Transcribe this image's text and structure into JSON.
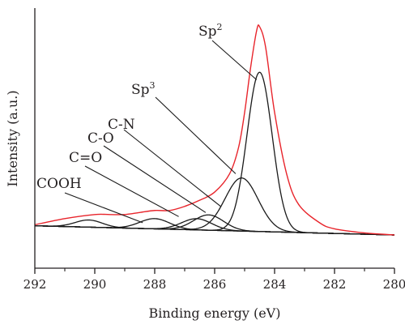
{
  "chart_data": {
    "type": "line",
    "title": "",
    "xlabel": "Binding energy (eV)",
    "ylabel": "Intensity (a.u.)",
    "xlim": [
      292,
      280
    ],
    "x_reversed": true,
    "x_ticks": [
      "292",
      "290",
      "288",
      "286",
      "284",
      "282",
      "280"
    ],
    "y_ticks_shown": false,
    "grid": false,
    "legend": "none",
    "colors": {
      "envelope": "#e8242b",
      "components": "#1a1a1a",
      "axes": "#231f20"
    },
    "baseline": {
      "at_292": 0.045,
      "at_280": 0.0
    },
    "series": [
      {
        "role": "envelope",
        "color": "#e8242b",
        "x": [
          292,
          291.0,
          290.0,
          289.5,
          289.0,
          288.5,
          288.0,
          287.5,
          287.0,
          286.5,
          286.0,
          285.5,
          285.2,
          285.0,
          284.8,
          284.6,
          284.5,
          284.3,
          284.0,
          283.6,
          283.2,
          282.5,
          282.0,
          281.0,
          280.0
        ],
        "y": [
          0.05,
          0.08,
          0.1,
          0.1,
          0.1,
          0.11,
          0.12,
          0.12,
          0.14,
          0.17,
          0.21,
          0.3,
          0.43,
          0.6,
          0.82,
          1.0,
          1.02,
          0.92,
          0.6,
          0.3,
          0.15,
          0.06,
          0.03,
          0.01,
          0.0
        ]
      },
      {
        "role": "component",
        "label": "Sp2",
        "color": "#1a1a1a",
        "center": 284.5,
        "height": 0.78,
        "width": 0.42
      },
      {
        "role": "component",
        "label": "Sp3",
        "color": "#1a1a1a",
        "center": 285.1,
        "height": 0.26,
        "width": 0.55
      },
      {
        "role": "component",
        "label": "C-N",
        "color": "#1a1a1a",
        "center": 286.2,
        "height": 0.075,
        "width": 0.5
      },
      {
        "role": "component",
        "label": "C-O",
        "color": "#1a1a1a",
        "center": 286.6,
        "height": 0.055,
        "width": 0.5
      },
      {
        "role": "component",
        "label": "C=O",
        "color": "#1a1a1a",
        "center": 288.0,
        "height": 0.05,
        "width": 0.5
      },
      {
        "role": "component",
        "label": "COOH",
        "color": "#1a1a1a",
        "center": 290.2,
        "height": 0.035,
        "width": 0.45
      }
    ],
    "annotations": [
      {
        "text": "Sp",
        "sup": "2",
        "target_x": 284.6,
        "target_y": 0.76
      },
      {
        "text": "Sp",
        "sup": "3",
        "target_x": 285.3,
        "target_y": 0.3
      },
      {
        "text": "C-N",
        "sup": "",
        "target_x": 285.8,
        "target_y": 0.14
      },
      {
        "text": "C-O",
        "sup": "",
        "target_x": 286.3,
        "target_y": 0.11
      },
      {
        "text": "C=O",
        "sup": "",
        "target_x": 287.2,
        "target_y": 0.09
      },
      {
        "text": "COOH",
        "sup": "",
        "target_x": 288.4,
        "target_y": 0.06
      }
    ]
  }
}
